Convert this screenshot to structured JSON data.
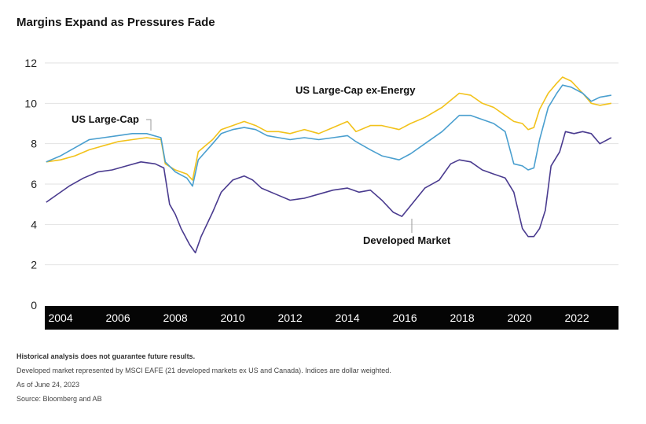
{
  "title": "Margins Expand as Pressures Fade",
  "chart_data": {
    "type": "line",
    "title": "Margins Expand as Pressures Fade",
    "xlim": [
      2003.45,
      2023.45
    ],
    "ylim": [
      0,
      12
    ],
    "yticks": [
      0,
      2,
      4,
      6,
      8,
      10,
      12
    ],
    "xticks": [
      "2004",
      "2006",
      "2008",
      "2010",
      "2012",
      "2014",
      "2016",
      "2018",
      "2020",
      "2022"
    ],
    "grid": "horizontal",
    "series": [
      {
        "name": "US Large-Cap ex-Energy",
        "color": "#f2c21b",
        "points": [
          [
            2003.5,
            7.1
          ],
          [
            2004.0,
            7.2
          ],
          [
            2004.5,
            7.4
          ],
          [
            2005.0,
            7.7
          ],
          [
            2005.5,
            7.9
          ],
          [
            2006.0,
            8.1
          ],
          [
            2006.5,
            8.2
          ],
          [
            2007.0,
            8.3
          ],
          [
            2007.5,
            8.2
          ],
          [
            2007.65,
            7.0
          ],
          [
            2008.0,
            6.7
          ],
          [
            2008.4,
            6.5
          ],
          [
            2008.6,
            6.2
          ],
          [
            2008.8,
            7.6
          ],
          [
            2009.3,
            8.2
          ],
          [
            2009.6,
            8.7
          ],
          [
            2010.0,
            8.9
          ],
          [
            2010.4,
            9.1
          ],
          [
            2010.8,
            8.9
          ],
          [
            2011.2,
            8.6
          ],
          [
            2011.6,
            8.6
          ],
          [
            2012.0,
            8.5
          ],
          [
            2012.5,
            8.7
          ],
          [
            2013.0,
            8.5
          ],
          [
            2013.5,
            8.8
          ],
          [
            2014.0,
            9.1
          ],
          [
            2014.3,
            8.6
          ],
          [
            2014.8,
            8.9
          ],
          [
            2015.2,
            8.9
          ],
          [
            2015.8,
            8.7
          ],
          [
            2016.2,
            9.0
          ],
          [
            2016.7,
            9.3
          ],
          [
            2017.3,
            9.8
          ],
          [
            2017.9,
            10.5
          ],
          [
            2018.3,
            10.4
          ],
          [
            2018.7,
            10.0
          ],
          [
            2019.1,
            9.8
          ],
          [
            2019.5,
            9.4
          ],
          [
            2019.8,
            9.1
          ],
          [
            2020.1,
            9.0
          ],
          [
            2020.3,
            8.7
          ],
          [
            2020.5,
            8.8
          ],
          [
            2020.7,
            9.7
          ],
          [
            2021.0,
            10.5
          ],
          [
            2021.3,
            11.0
          ],
          [
            2021.5,
            11.3
          ],
          [
            2021.8,
            11.1
          ],
          [
            2022.2,
            10.5
          ],
          [
            2022.5,
            10.0
          ],
          [
            2022.8,
            9.9
          ],
          [
            2023.2,
            10.0
          ]
        ]
      },
      {
        "name": "US Large-Cap",
        "color": "#4a9fcf",
        "points": [
          [
            2003.5,
            7.1
          ],
          [
            2004.0,
            7.4
          ],
          [
            2004.5,
            7.8
          ],
          [
            2005.0,
            8.2
          ],
          [
            2005.5,
            8.3
          ],
          [
            2006.0,
            8.4
          ],
          [
            2006.5,
            8.5
          ],
          [
            2007.0,
            8.5
          ],
          [
            2007.5,
            8.3
          ],
          [
            2007.65,
            7.1
          ],
          [
            2008.0,
            6.6
          ],
          [
            2008.4,
            6.3
          ],
          [
            2008.6,
            5.9
          ],
          [
            2008.8,
            7.2
          ],
          [
            2009.3,
            8.0
          ],
          [
            2009.6,
            8.5
          ],
          [
            2010.0,
            8.7
          ],
          [
            2010.4,
            8.8
          ],
          [
            2010.8,
            8.7
          ],
          [
            2011.2,
            8.4
          ],
          [
            2011.6,
            8.3
          ],
          [
            2012.0,
            8.2
          ],
          [
            2012.5,
            8.3
          ],
          [
            2013.0,
            8.2
          ],
          [
            2013.5,
            8.3
          ],
          [
            2014.0,
            8.4
          ],
          [
            2014.3,
            8.1
          ],
          [
            2014.8,
            7.7
          ],
          [
            2015.2,
            7.4
          ],
          [
            2015.8,
            7.2
          ],
          [
            2016.2,
            7.5
          ],
          [
            2016.7,
            8.0
          ],
          [
            2017.3,
            8.6
          ],
          [
            2017.9,
            9.4
          ],
          [
            2018.3,
            9.4
          ],
          [
            2018.7,
            9.2
          ],
          [
            2019.1,
            9.0
          ],
          [
            2019.5,
            8.6
          ],
          [
            2019.8,
            7.0
          ],
          [
            2020.1,
            6.9
          ],
          [
            2020.3,
            6.7
          ],
          [
            2020.5,
            6.8
          ],
          [
            2020.7,
            8.2
          ],
          [
            2021.0,
            9.8
          ],
          [
            2021.3,
            10.5
          ],
          [
            2021.5,
            10.9
          ],
          [
            2021.8,
            10.8
          ],
          [
            2022.2,
            10.5
          ],
          [
            2022.5,
            10.1
          ],
          [
            2022.8,
            10.3
          ],
          [
            2023.2,
            10.4
          ]
        ]
      },
      {
        "name": "Developed Market",
        "color": "#4a3b8f",
        "points": [
          [
            2003.5,
            5.1
          ],
          [
            2003.8,
            5.4
          ],
          [
            2004.3,
            5.9
          ],
          [
            2004.8,
            6.3
          ],
          [
            2005.3,
            6.6
          ],
          [
            2005.8,
            6.7
          ],
          [
            2006.3,
            6.9
          ],
          [
            2006.8,
            7.1
          ],
          [
            2007.3,
            7.0
          ],
          [
            2007.6,
            6.8
          ],
          [
            2007.8,
            5.0
          ],
          [
            2008.0,
            4.5
          ],
          [
            2008.2,
            3.8
          ],
          [
            2008.5,
            3.0
          ],
          [
            2008.7,
            2.6
          ],
          [
            2008.9,
            3.4
          ],
          [
            2009.3,
            4.6
          ],
          [
            2009.6,
            5.6
          ],
          [
            2010.0,
            6.2
          ],
          [
            2010.4,
            6.4
          ],
          [
            2010.7,
            6.2
          ],
          [
            2011.0,
            5.8
          ],
          [
            2011.5,
            5.5
          ],
          [
            2012.0,
            5.2
          ],
          [
            2012.5,
            5.3
          ],
          [
            2013.0,
            5.5
          ],
          [
            2013.5,
            5.7
          ],
          [
            2014.0,
            5.8
          ],
          [
            2014.4,
            5.6
          ],
          [
            2014.8,
            5.7
          ],
          [
            2015.2,
            5.2
          ],
          [
            2015.6,
            4.6
          ],
          [
            2015.9,
            4.4
          ],
          [
            2016.3,
            5.1
          ],
          [
            2016.7,
            5.8
          ],
          [
            2017.2,
            6.2
          ],
          [
            2017.6,
            7.0
          ],
          [
            2017.9,
            7.2
          ],
          [
            2018.3,
            7.1
          ],
          [
            2018.7,
            6.7
          ],
          [
            2019.1,
            6.5
          ],
          [
            2019.5,
            6.3
          ],
          [
            2019.8,
            5.6
          ],
          [
            2020.1,
            3.8
          ],
          [
            2020.3,
            3.4
          ],
          [
            2020.5,
            3.4
          ],
          [
            2020.7,
            3.8
          ],
          [
            2020.9,
            4.7
          ],
          [
            2021.1,
            6.9
          ],
          [
            2021.4,
            7.6
          ],
          [
            2021.6,
            8.6
          ],
          [
            2021.9,
            8.5
          ],
          [
            2022.2,
            8.6
          ],
          [
            2022.5,
            8.5
          ],
          [
            2022.8,
            8.0
          ],
          [
            2023.2,
            8.3
          ]
        ]
      }
    ],
    "annotations": [
      {
        "text": "US Large-Cap",
        "x": 2007.6,
        "y": 8.45,
        "series": "US Large-Cap"
      },
      {
        "text": "US Large-Cap ex-Energy",
        "x": 2014.3,
        "y": 10.6,
        "series": "US Large-Cap ex-Energy"
      },
      {
        "text": "Developed Market",
        "x": 2015.8,
        "y": 4.5,
        "series": "Developed Market"
      }
    ]
  },
  "notes": {
    "disclaimer": "Historical analysis does not guarantee future results.",
    "definition": "Developed market represented by MSCI EAFE (21 developed markets ex US and Canada). Indices are dollar weighted.",
    "as_of": "As of June 24, 2023",
    "source": "Source: Bloomberg and AB"
  }
}
